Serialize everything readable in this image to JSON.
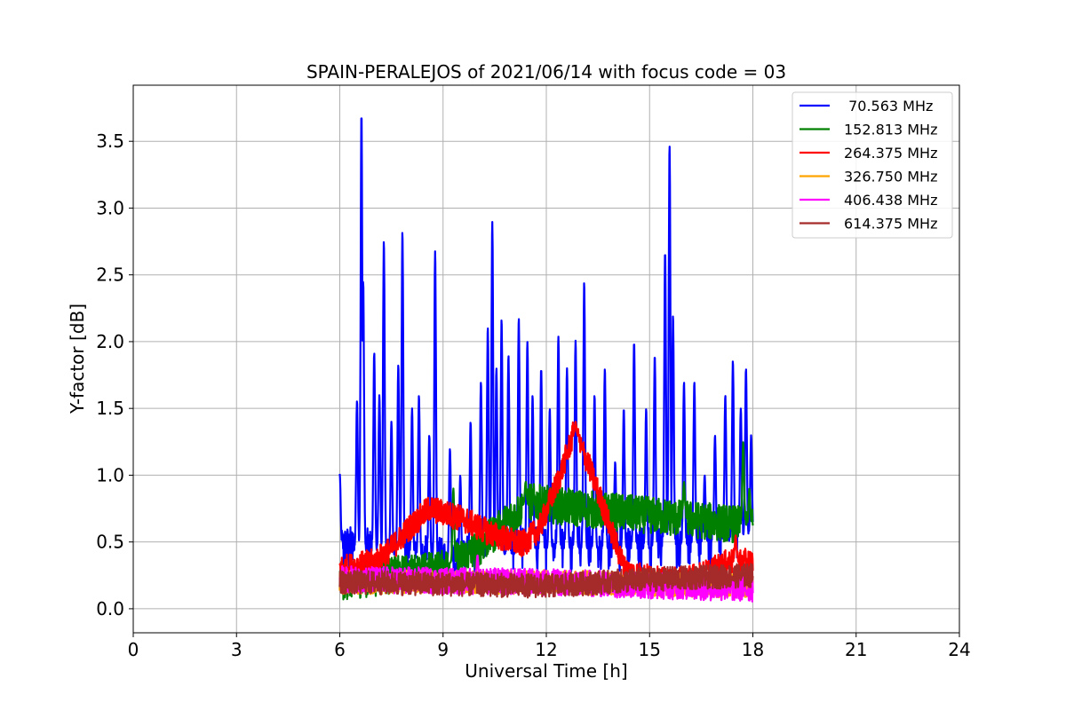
{
  "chart_data": {
    "type": "line",
    "title": "SPAIN-PERALEJOS of 2021/06/14 with focus code = 03",
    "xlabel": "Universal Time [h]",
    "ylabel": "Y-factor [dB]",
    "xlim": [
      0,
      24
    ],
    "ylim": [
      -0.18,
      3.92
    ],
    "xticks": [
      0,
      3,
      6,
      9,
      12,
      15,
      18,
      21,
      24
    ],
    "yticks": [
      0.0,
      0.5,
      1.0,
      1.5,
      2.0,
      2.5,
      3.0,
      3.5
    ],
    "xtick_labels": [
      "0",
      "3",
      "6",
      "9",
      "12",
      "15",
      "18",
      "21",
      "24"
    ],
    "ytick_labels": [
      "0.0",
      "0.5",
      "1.0",
      "1.5",
      "2.0",
      "2.5",
      "3.0",
      "3.5"
    ],
    "grid": true,
    "legend_position": "top-right",
    "series": [
      {
        "name": " 70.563 MHz",
        "color": "#0000ff",
        "baseline": [
          [
            6.0,
            0.45
          ],
          [
            9.0,
            0.35
          ],
          [
            12.0,
            0.45
          ],
          [
            15.0,
            0.45
          ],
          [
            18.0,
            0.55
          ]
        ],
        "noise": 0.18,
        "peaks": [
          [
            6.0,
            1.01
          ],
          [
            6.5,
            1.56
          ],
          [
            6.63,
            3.72
          ],
          [
            6.68,
            2.46
          ],
          [
            7.0,
            1.92
          ],
          [
            7.15,
            1.6
          ],
          [
            7.28,
            2.76
          ],
          [
            7.5,
            1.4
          ],
          [
            7.7,
            1.83
          ],
          [
            7.82,
            2.83
          ],
          [
            8.1,
            1.5
          ],
          [
            8.3,
            1.6
          ],
          [
            8.6,
            1.3
          ],
          [
            8.77,
            2.68
          ],
          [
            9.2,
            1.2
          ],
          [
            9.5,
            1.0
          ],
          [
            9.8,
            1.4
          ],
          [
            10.1,
            1.7
          ],
          [
            10.3,
            2.11
          ],
          [
            10.43,
            2.9
          ],
          [
            10.55,
            1.8
          ],
          [
            10.7,
            2.17
          ],
          [
            10.9,
            1.9
          ],
          [
            11.2,
            2.18
          ],
          [
            11.45,
            2.0
          ],
          [
            11.6,
            1.6
          ],
          [
            11.85,
            1.8
          ],
          [
            12.1,
            1.5
          ],
          [
            12.35,
            2.04
          ],
          [
            12.6,
            1.8
          ],
          [
            12.85,
            2.01
          ],
          [
            13.1,
            2.45
          ],
          [
            13.4,
            1.6
          ],
          [
            13.7,
            1.8
          ],
          [
            14.0,
            1.1
          ],
          [
            14.25,
            1.5
          ],
          [
            14.55,
            2.0
          ],
          [
            14.9,
            1.5
          ],
          [
            15.15,
            1.9
          ],
          [
            15.45,
            2.68
          ],
          [
            15.58,
            3.48
          ],
          [
            15.68,
            2.2
          ],
          [
            16.0,
            1.7
          ],
          [
            16.3,
            1.7
          ],
          [
            16.6,
            1.0
          ],
          [
            16.9,
            1.3
          ],
          [
            17.2,
            1.6
          ],
          [
            17.42,
            1.86
          ],
          [
            17.65,
            1.5
          ],
          [
            17.8,
            1.8
          ],
          [
            17.95,
            1.3
          ]
        ]
      },
      {
        "name": "152.813 MHz",
        "color": "#008000",
        "baseline": [
          [
            6.0,
            0.2
          ],
          [
            9.0,
            0.3
          ],
          [
            10.0,
            0.45
          ],
          [
            11.5,
            0.8
          ],
          [
            13.0,
            0.75
          ],
          [
            15.0,
            0.7
          ],
          [
            18.0,
            0.62
          ]
        ],
        "noise": 0.14,
        "peaks": [
          [
            9.3,
            0.9
          ],
          [
            11.4,
            0.95
          ],
          [
            16.0,
            0.95
          ],
          [
            17.72,
            1.25
          ],
          [
            17.9,
            0.9
          ]
        ]
      },
      {
        "name": "264.375 MHz",
        "color": "#ff0000",
        "baseline": [
          [
            6.0,
            0.3
          ],
          [
            7.0,
            0.35
          ],
          [
            7.5,
            0.45
          ],
          [
            8.0,
            0.6
          ],
          [
            8.6,
            0.75
          ],
          [
            9.5,
            0.68
          ],
          [
            10.5,
            0.55
          ],
          [
            11.3,
            0.48
          ],
          [
            11.8,
            0.6
          ],
          [
            12.4,
            1.0
          ],
          [
            12.8,
            1.32
          ],
          [
            13.2,
            1.1
          ],
          [
            13.8,
            0.65
          ],
          [
            14.3,
            0.28
          ],
          [
            15.5,
            0.2
          ],
          [
            16.5,
            0.25
          ],
          [
            17.3,
            0.35
          ],
          [
            18.0,
            0.35
          ]
        ],
        "noise": 0.1,
        "peaks": [
          [
            12.85,
            1.4
          ],
          [
            17.5,
            0.55
          ]
        ]
      },
      {
        "name": "326.750 MHz",
        "color": "#ffa500",
        "baseline": [
          [
            6.0,
            0.2
          ],
          [
            12.0,
            0.2
          ],
          [
            18.0,
            0.17
          ]
        ],
        "noise": 0.09,
        "peaks": []
      },
      {
        "name": "406.438 MHz",
        "color": "#ff00ff",
        "baseline": [
          [
            6.0,
            0.22
          ],
          [
            12.0,
            0.2
          ],
          [
            18.0,
            0.15
          ]
        ],
        "noise": 0.1,
        "peaks": [
          [
            10.0,
            0.4
          ]
        ]
      },
      {
        "name": "614.375 MHz",
        "color": "#a52a2a",
        "baseline": [
          [
            6.0,
            0.2
          ],
          [
            12.0,
            0.17
          ],
          [
            15.0,
            0.22
          ],
          [
            18.0,
            0.25
          ]
        ],
        "noise": 0.09,
        "peaks": []
      }
    ]
  }
}
